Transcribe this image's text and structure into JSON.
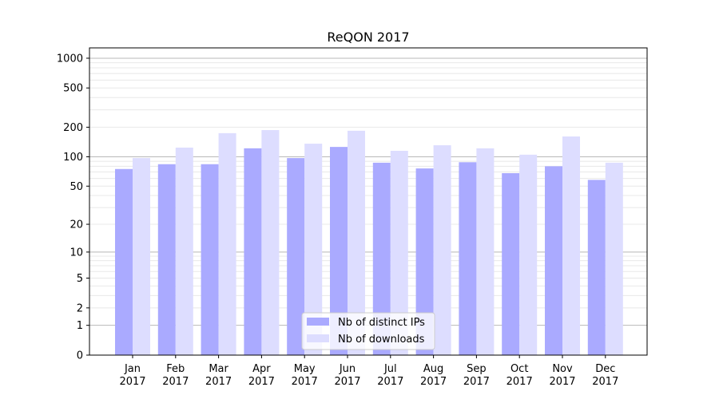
{
  "chart_data": {
    "type": "bar",
    "title": "ReQON 2017",
    "xlabel": "",
    "ylabel": "",
    "yscale": "symlog (log10(1+y))",
    "ylim": [
      0,
      1270
    ],
    "yticks": [
      0,
      1,
      2,
      5,
      10,
      20,
      50,
      100,
      200,
      500,
      1000
    ],
    "grid": true,
    "legend_position": "bottom-center",
    "categories": [
      "Jan\n2017",
      "Feb\n2017",
      "Mar\n2017",
      "Apr\n2017",
      "May\n2017",
      "Jun\n2017",
      "Jul\n2017",
      "Aug\n2017",
      "Sep\n2017",
      "Oct\n2017",
      "Nov\n2017",
      "Dec\n2017"
    ],
    "series": [
      {
        "name": "Nb of distinct IPs",
        "color": "#aaaaff",
        "values": [
          75,
          84,
          84,
          122,
          97,
          126,
          87,
          76,
          88,
          68,
          80,
          58
        ]
      },
      {
        "name": "Nb of downloads",
        "color": "#ddddff",
        "values": [
          97,
          124,
          174,
          187,
          136,
          184,
          115,
          131,
          122,
          105,
          161,
          87
        ]
      }
    ]
  }
}
